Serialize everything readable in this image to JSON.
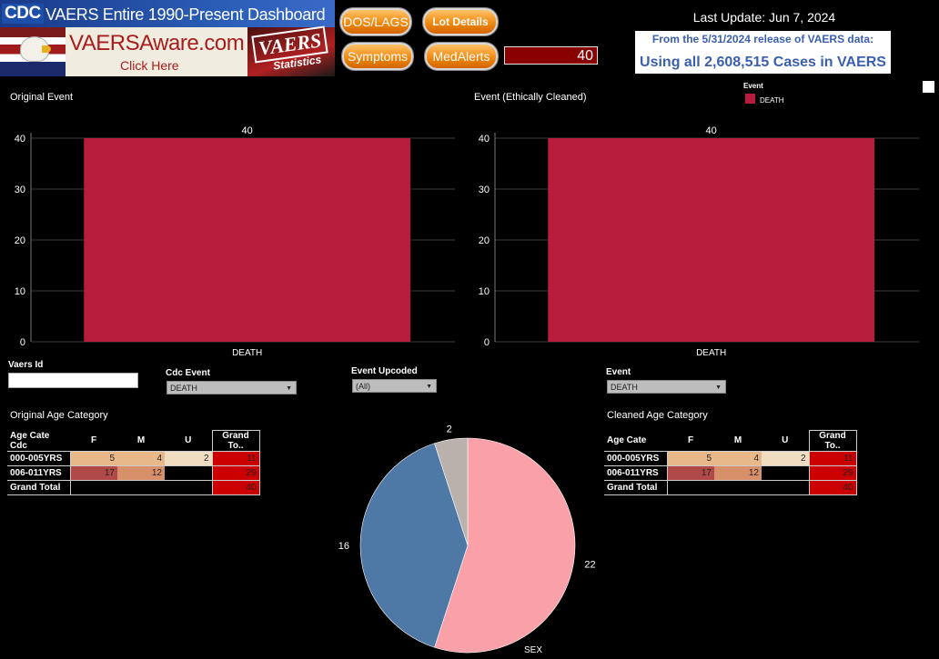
{
  "banner": {
    "cdc_logo": "CDC",
    "title": "VAERS Entire 1990-Present Dashboard",
    "vaersaware_main": "VAERSAware.com",
    "vaersaware_sub": "Click Here",
    "stats_vaers": "VAERS",
    "stats_sub": "Statistics"
  },
  "buttons": {
    "dos_lags": "DOS/LAGS",
    "lot_details": "Lot Details",
    "symptoms": "Symptoms",
    "medalerts": "MedAlerts"
  },
  "count_display": "40",
  "last_update": "Last Update: Jun 7, 2024",
  "release": {
    "line1": "From the 5/31/2024 release of VAERS data:",
    "line2": "Using all 2,608,515 Cases in VAERS"
  },
  "legend": {
    "title": "Event",
    "items": [
      {
        "label": "DEATH",
        "color": "#b71c3c"
      }
    ]
  },
  "chart_data": [
    {
      "type": "bar",
      "title": "Original Event",
      "categories": [
        "DEATH"
      ],
      "values": [
        40
      ],
      "data_labels": [
        "40"
      ],
      "yticks": [
        "0",
        "10",
        "20",
        "30",
        "40"
      ],
      "ylim": [
        0,
        40
      ],
      "color": "#b71c3c"
    },
    {
      "type": "bar",
      "title": "Event (Ethically Cleaned)",
      "categories": [
        "DEATH"
      ],
      "values": [
        40
      ],
      "data_labels": [
        "40"
      ],
      "yticks": [
        "0",
        "10",
        "20",
        "30",
        "40"
      ],
      "ylim": [
        0,
        40
      ],
      "color": "#b71c3c"
    },
    {
      "type": "pie",
      "label": "SEX",
      "slices": [
        {
          "value": 22,
          "label": "22",
          "color": "#f9a0a8"
        },
        {
          "value": 16,
          "label": "16",
          "color": "#4e79a7"
        },
        {
          "value": 2,
          "label": "2",
          "color": "#bab0ac"
        }
      ]
    }
  ],
  "filters": {
    "vaers_id_label": "Vaers Id",
    "vaers_id_value": "",
    "cdc_event_label": "Cdc Event",
    "cdc_event_value": "DEATH",
    "event_upcoded_label": "Event Upcoded",
    "event_upcoded_value": "(All)",
    "event_label": "Event",
    "event_value": "DEATH"
  },
  "tables": {
    "original": {
      "title": "Original Age Category",
      "headers": [
        "Age Cate Cdc",
        "F",
        "M",
        "U",
        "Grand To.."
      ],
      "rows": [
        [
          "000-005YRS",
          "5",
          "4",
          "2",
          "11"
        ],
        [
          "006-011YRS",
          "17",
          "12",
          "",
          "29"
        ],
        [
          "Grand Total",
          "",
          "",
          "",
          "40"
        ]
      ]
    },
    "cleaned": {
      "title": "Cleaned Age Category",
      "headers": [
        "Age Cate",
        "F",
        "M",
        "U",
        "Grand To.."
      ],
      "rows": [
        [
          "000-005YRS",
          "5",
          "4",
          "2",
          "11"
        ],
        [
          "006-011YRS",
          "17",
          "12",
          "",
          "29"
        ],
        [
          "Grand Total",
          "",
          "",
          "",
          "40"
        ]
      ]
    }
  },
  "colors": {
    "heat_low": "#f0dcc0",
    "heat_mid1": "#e8b888",
    "heat_mid2": "#d8906a",
    "heat_high": "#b04a48",
    "total": "#cc0000"
  }
}
